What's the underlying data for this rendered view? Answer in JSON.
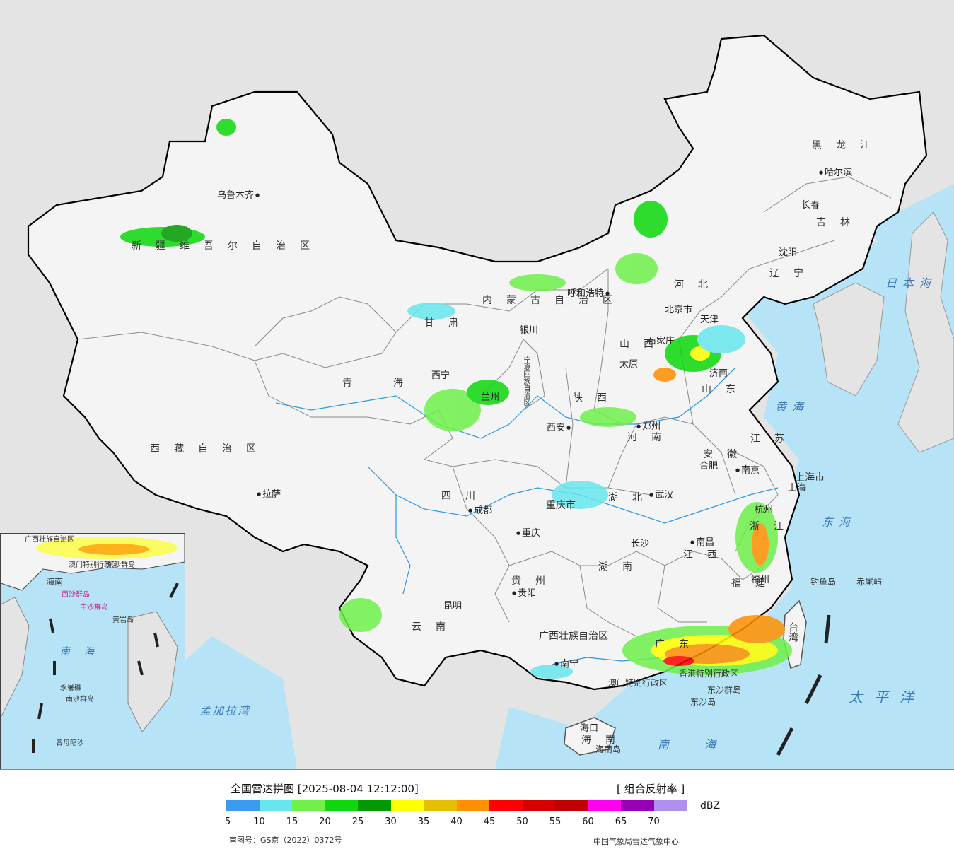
{
  "legend": {
    "title": "全国雷达拼图 [2025-08-04 12:12:00]",
    "product": "[ 组合反射率 ]",
    "unit": "dBZ",
    "ticks": [
      "5",
      "10",
      "15",
      "20",
      "25",
      "30",
      "35",
      "40",
      "45",
      "50",
      "55",
      "60",
      "65",
      "70"
    ],
    "colors": [
      "#3d9bef",
      "#66e6ed",
      "#6ff04a",
      "#0cd80c",
      "#009a00",
      "#ffff00",
      "#e6c000",
      "#ff9000",
      "#ff0000",
      "#d50000",
      "#c00000",
      "#ff00f0",
      "#9600b4",
      "#ad90f0"
    ],
    "review_number": "审图号：GS京（2022）0372号",
    "agency": "中国气象局雷达气象中心"
  },
  "map": {
    "colors": {
      "land": "#f4f4f4",
      "outside": "#e4e4e4",
      "sea": "#b7e3f7",
      "border": "#000000",
      "province_line": "#8a8a8a",
      "river": "#2a9ae0"
    },
    "cities": [
      {
        "name": "乌鲁木齐",
        "dot_after": true
      },
      {
        "name": "拉萨",
        "dot_after": false
      },
      {
        "name": "西宁",
        "dot_after": false
      },
      {
        "name": "兰州",
        "dot_after": false
      },
      {
        "name": "银川",
        "dot_after": false
      },
      {
        "name": "呼和浩特",
        "dot_after": true
      },
      {
        "name": "北京市",
        "dot_after": false
      },
      {
        "name": "石家庄",
        "dot_after": false
      },
      {
        "name": "太原",
        "dot_after": false
      },
      {
        "name": "济南",
        "dot_after": false
      },
      {
        "name": "西安",
        "dot_after": true
      },
      {
        "name": "郑州",
        "dot_after": false
      },
      {
        "name": "沈阳",
        "dot_after": false
      },
      {
        "name": "长春",
        "dot_after": false
      },
      {
        "name": "哈尔滨",
        "dot_after": false
      },
      {
        "name": "合肥",
        "dot_after": false
      },
      {
        "name": "南京",
        "dot_after": false
      },
      {
        "name": "上海",
        "dot_after": false
      },
      {
        "name": "杭州",
        "dot_after": false
      },
      {
        "name": "武汉",
        "dot_after": false
      },
      {
        "name": "成都",
        "dot_after": false
      },
      {
        "name": "重庆",
        "dot_after": false
      },
      {
        "name": "长沙",
        "dot_after": false
      },
      {
        "name": "南昌",
        "dot_after": false
      },
      {
        "name": "福州",
        "dot_after": false
      },
      {
        "name": "贵阳",
        "dot_after": false
      },
      {
        "name": "昆明",
        "dot_after": false
      },
      {
        "name": "南宁",
        "dot_after": false
      },
      {
        "name": "海口",
        "dot_after": false
      },
      {
        "name": "天津",
        "dot_after": false
      }
    ],
    "provinces": [
      "新疆维吾尔自治区",
      "西藏自治区",
      "青海",
      "甘肃",
      "内蒙古自治区",
      "黑龙江",
      "吉林",
      "辽宁",
      "河北",
      "山西",
      "山东",
      "陕西",
      "河南",
      "江苏",
      "安徽",
      "上海市",
      "浙江",
      "湖北",
      "四川",
      "重庆市",
      "湖南",
      "江西",
      "福建",
      "贵州",
      "云南",
      "广西壮族自治区",
      "广东",
      "海南",
      "台湾",
      "宁夏回族自治区",
      "香港特别行政区",
      "澳门特别行政区"
    ],
    "seas": [
      "日本海",
      "黄海",
      "东海",
      "太平洋",
      "南海",
      "孟加拉湾"
    ],
    "islands": [
      "钓鱼岛",
      "赤尾屿",
      "东沙群岛",
      "东沙岛",
      "海南岛"
    ],
    "inset": {
      "labels": [
        "南海",
        "海南",
        "西沙群岛",
        "中沙群岛",
        "黄岩岛",
        "南沙群岛",
        "永暑礁",
        "曾母暗沙",
        "东沙群岛",
        "广西壮族自治区",
        "澳门特别行政区"
      ]
    }
  }
}
